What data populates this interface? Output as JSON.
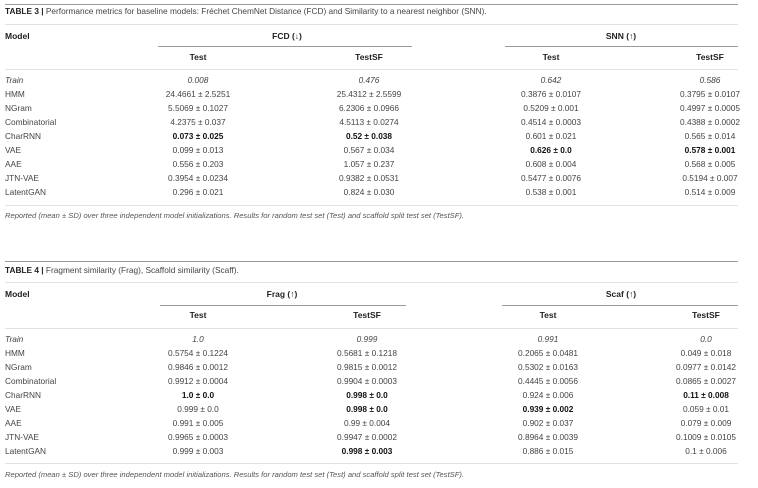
{
  "table3": {
    "label": "TABLE 3 |",
    "caption": " Performance metrics for baseline models: Fréchet ChemNet Distance (FCD) and Similarity to a nearest neighbor (SNN).",
    "model_header": "Model",
    "groups": [
      {
        "label": "FCD (↓)",
        "subheaders": [
          "Test",
          "TestSF"
        ]
      },
      {
        "label": "SNN (↑)",
        "subheaders": [
          "Test",
          "TestSF"
        ]
      }
    ],
    "rows": [
      {
        "model": "Train",
        "italic": true,
        "cells": [
          {
            "v": "0.008"
          },
          {
            "v": "0.476"
          },
          {
            "v": "0.642"
          },
          {
            "v": "0.586"
          }
        ]
      },
      {
        "model": "HMM",
        "cells": [
          {
            "v": "24.4661 ± 2.5251"
          },
          {
            "v": "25.4312 ± 2.5599"
          },
          {
            "v": "0.3876 ± 0.0107"
          },
          {
            "v": "0.3795 ± 0.0107"
          }
        ]
      },
      {
        "model": "NGram",
        "cells": [
          {
            "v": "5.5069 ± 0.1027"
          },
          {
            "v": "6.2306 ± 0.0966"
          },
          {
            "v": "0.5209 ± 0.001"
          },
          {
            "v": "0.4997 ± 0.0005"
          }
        ]
      },
      {
        "model": "Combinatorial",
        "cells": [
          {
            "v": "4.2375 ± 0.037"
          },
          {
            "v": "4.5113 ± 0.0274"
          },
          {
            "v": "0.4514 ± 0.0003"
          },
          {
            "v": "0.4388 ± 0.0002"
          }
        ]
      },
      {
        "model": "CharRNN",
        "cells": [
          {
            "v": "0.073 ± 0.025",
            "bold": true
          },
          {
            "v": "0.52 ± 0.038",
            "bold": true
          },
          {
            "v": "0.601 ± 0.021"
          },
          {
            "v": "0.565 ± 0.014"
          }
        ]
      },
      {
        "model": "VAE",
        "cells": [
          {
            "v": "0.099 ± 0.013"
          },
          {
            "v": "0.567 ± 0.034"
          },
          {
            "v": "0.626 ± 0.0",
            "bold": true
          },
          {
            "v": "0.578 ± 0.001",
            "bold": true
          }
        ]
      },
      {
        "model": "AAE",
        "cells": [
          {
            "v": "0.556 ± 0.203"
          },
          {
            "v": "1.057 ± 0.237"
          },
          {
            "v": "0.608 ± 0.004"
          },
          {
            "v": "0.568 ± 0.005"
          }
        ]
      },
      {
        "model": "JTN-VAE",
        "cells": [
          {
            "v": "0.3954 ± 0.0234"
          },
          {
            "v": "0.9382 ± 0.0531"
          },
          {
            "v": "0.5477 ± 0.0076"
          },
          {
            "v": "0.5194 ± 0.007"
          }
        ]
      },
      {
        "model": "LatentGAN",
        "cells": [
          {
            "v": "0.296 ± 0.021"
          },
          {
            "v": "0.824 ± 0.030"
          },
          {
            "v": "0.538 ± 0.001"
          },
          {
            "v": "0.514 ± 0.009"
          }
        ]
      }
    ],
    "note": "Reported (mean ± SD) over three independent model initializations. Results for random test set (Test) and scaffold split test set (TestSF)."
  },
  "table4": {
    "label": "TABLE 4 |",
    "caption": " Fragment similarity (Frag), Scaffold similarity (Scaff).",
    "model_header": "Model",
    "groups": [
      {
        "label": "Frag (↑)",
        "subheaders": [
          "Test",
          "TestSF"
        ]
      },
      {
        "label": "Scaf (↑)",
        "subheaders": [
          "Test",
          "TestSF"
        ]
      }
    ],
    "rows": [
      {
        "model": "Train",
        "italic": true,
        "cells": [
          {
            "v": "1.0"
          },
          {
            "v": "0.999"
          },
          {
            "v": "0.991"
          },
          {
            "v": "0.0"
          }
        ]
      },
      {
        "model": "HMM",
        "cells": [
          {
            "v": "0.5754 ± 0.1224"
          },
          {
            "v": "0.5681 ± 0.1218"
          },
          {
            "v": "0.2065 ± 0.0481"
          },
          {
            "v": "0.049 ± 0.018"
          }
        ]
      },
      {
        "model": "NGram",
        "cells": [
          {
            "v": "0.9846 ± 0.0012"
          },
          {
            "v": "0.9815 ± 0.0012"
          },
          {
            "v": "0.5302 ± 0.0163"
          },
          {
            "v": "0.0977 ± 0.0142"
          }
        ]
      },
      {
        "model": "Combinatorial",
        "cells": [
          {
            "v": "0.9912 ± 0.0004"
          },
          {
            "v": "0.9904 ± 0.0003"
          },
          {
            "v": "0.4445 ± 0.0056"
          },
          {
            "v": "0.0865 ± 0.0027"
          }
        ]
      },
      {
        "model": "CharRNN",
        "cells": [
          {
            "v": "1.0 ± 0.0",
            "bold": true
          },
          {
            "v": "0.998 ± 0.0",
            "bold": true
          },
          {
            "v": "0.924 ± 0.006"
          },
          {
            "v": "0.11 ± 0.008",
            "bold": true
          }
        ]
      },
      {
        "model": "VAE",
        "cells": [
          {
            "v": "0.999 ± 0.0"
          },
          {
            "v": "0.998 ± 0.0",
            "bold": true
          },
          {
            "v": "0.939 ± 0.002",
            "bold": true
          },
          {
            "v": "0.059 ± 0.01"
          }
        ]
      },
      {
        "model": "AAE",
        "cells": [
          {
            "v": "0.991 ± 0.005"
          },
          {
            "v": "0.99 ± 0.004"
          },
          {
            "v": "0.902 ± 0.037"
          },
          {
            "v": "0.079 ± 0.009"
          }
        ]
      },
      {
        "model": "JTN-VAE",
        "cells": [
          {
            "v": "0.9965 ± 0.0003"
          },
          {
            "v": "0.9947 ± 0.0002"
          },
          {
            "v": "0.8964 ± 0.0039"
          },
          {
            "v": "0.1009 ± 0.0105"
          }
        ]
      },
      {
        "model": "LatentGAN",
        "cells": [
          {
            "v": "0.999 ± 0.003"
          },
          {
            "v": "0.998 ± 0.003",
            "bold": true
          },
          {
            "v": "0.886 ± 0.015"
          },
          {
            "v": "0.1 ± 0.006"
          }
        ]
      }
    ],
    "note": "Reported (mean ± SD) over three independent model initializations. Results for random test set (Test) and scaffold split test set (TestSF)."
  }
}
